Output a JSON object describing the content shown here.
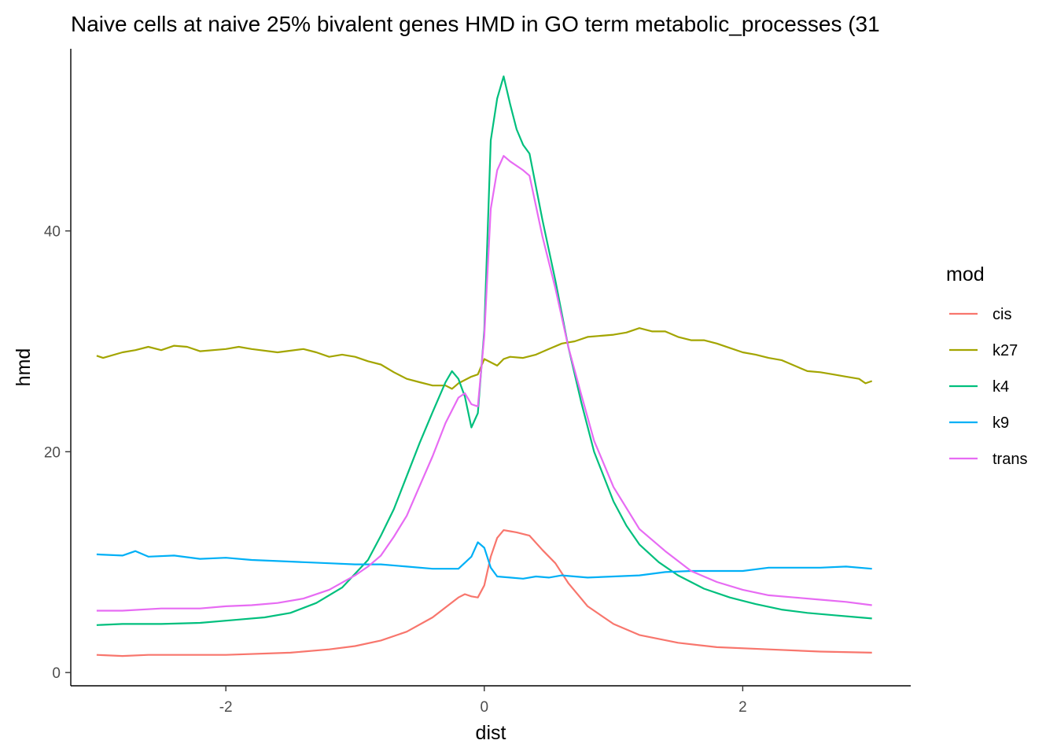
{
  "chart_data": {
    "type": "line",
    "title": "Naive cells at naive 25% bivalent genes HMD in GO term metabolic_processes (31",
    "xlabel": "dist",
    "ylabel": "hmd",
    "xlim": [
      -3.2,
      3.3
    ],
    "ylim": [
      -1.2,
      56.5
    ],
    "x_ticks": [
      -2,
      0,
      2
    ],
    "x_tick_labels": [
      "-2",
      "0",
      "2"
    ],
    "y_ticks": [
      0,
      20,
      40
    ],
    "y_tick_labels": [
      "0",
      "20",
      "40"
    ],
    "grid": false,
    "legend": {
      "title": "mod",
      "position": "right"
    },
    "series": [
      {
        "name": "cis",
        "color": "#F8766D",
        "points": [
          [
            -3,
            1.6
          ],
          [
            -2.8,
            1.5
          ],
          [
            -2.6,
            1.6
          ],
          [
            -2,
            1.6
          ],
          [
            -1.5,
            1.8
          ],
          [
            -1.2,
            2.1
          ],
          [
            -1,
            2.4
          ],
          [
            -0.8,
            2.9
          ],
          [
            -0.6,
            3.7
          ],
          [
            -0.4,
            5.0
          ],
          [
            -0.2,
            6.8
          ],
          [
            -0.15,
            7.1
          ],
          [
            -0.1,
            6.9
          ],
          [
            -0.05,
            6.8
          ],
          [
            0,
            7.9
          ],
          [
            0.05,
            10.5
          ],
          [
            0.1,
            12.2
          ],
          [
            0.15,
            12.9
          ],
          [
            0.2,
            12.8
          ],
          [
            0.25,
            12.7
          ],
          [
            0.35,
            12.4
          ],
          [
            0.45,
            11.1
          ],
          [
            0.55,
            9.9
          ],
          [
            0.65,
            8.1
          ],
          [
            0.8,
            6.0
          ],
          [
            1,
            4.4
          ],
          [
            1.2,
            3.4
          ],
          [
            1.5,
            2.7
          ],
          [
            1.8,
            2.3
          ],
          [
            2.2,
            2.1
          ],
          [
            2.6,
            1.9
          ],
          [
            3,
            1.8
          ]
        ]
      },
      {
        "name": "k27",
        "color": "#A3A500",
        "points": [
          [
            -3,
            28.7
          ],
          [
            -2.95,
            28.5
          ],
          [
            -2.8,
            29.0
          ],
          [
            -2.7,
            29.2
          ],
          [
            -2.6,
            29.5
          ],
          [
            -2.5,
            29.2
          ],
          [
            -2.4,
            29.6
          ],
          [
            -2.3,
            29.5
          ],
          [
            -2.2,
            29.1
          ],
          [
            -2.0,
            29.3
          ],
          [
            -1.9,
            29.5
          ],
          [
            -1.8,
            29.3
          ],
          [
            -1.6,
            29.0
          ],
          [
            -1.4,
            29.3
          ],
          [
            -1.3,
            29.0
          ],
          [
            -1.2,
            28.6
          ],
          [
            -1.1,
            28.8
          ],
          [
            -1.0,
            28.6
          ],
          [
            -0.9,
            28.2
          ],
          [
            -0.8,
            27.9
          ],
          [
            -0.7,
            27.2
          ],
          [
            -0.6,
            26.6
          ],
          [
            -0.5,
            26.3
          ],
          [
            -0.4,
            26.0
          ],
          [
            -0.3,
            26.0
          ],
          [
            -0.25,
            25.7
          ],
          [
            -0.2,
            26.2
          ],
          [
            -0.1,
            26.8
          ],
          [
            -0.05,
            27.0
          ],
          [
            0,
            28.4
          ],
          [
            0.1,
            27.8
          ],
          [
            0.15,
            28.4
          ],
          [
            0.2,
            28.6
          ],
          [
            0.3,
            28.5
          ],
          [
            0.4,
            28.8
          ],
          [
            0.5,
            29.3
          ],
          [
            0.6,
            29.8
          ],
          [
            0.7,
            30.0
          ],
          [
            0.8,
            30.4
          ],
          [
            0.9,
            30.5
          ],
          [
            1.0,
            30.6
          ],
          [
            1.1,
            30.8
          ],
          [
            1.2,
            31.2
          ],
          [
            1.3,
            30.9
          ],
          [
            1.4,
            30.9
          ],
          [
            1.5,
            30.4
          ],
          [
            1.6,
            30.1
          ],
          [
            1.7,
            30.1
          ],
          [
            1.8,
            29.8
          ],
          [
            1.9,
            29.4
          ],
          [
            2.0,
            29.0
          ],
          [
            2.1,
            28.8
          ],
          [
            2.2,
            28.5
          ],
          [
            2.3,
            28.3
          ],
          [
            2.4,
            27.8
          ],
          [
            2.5,
            27.3
          ],
          [
            2.6,
            27.2
          ],
          [
            2.7,
            27.0
          ],
          [
            2.8,
            26.8
          ],
          [
            2.9,
            26.6
          ],
          [
            2.95,
            26.2
          ],
          [
            3.0,
            26.4
          ]
        ]
      },
      {
        "name": "k4",
        "color": "#00BF7D",
        "points": [
          [
            -3,
            4.3
          ],
          [
            -2.8,
            4.4
          ],
          [
            -2.5,
            4.4
          ],
          [
            -2.2,
            4.5
          ],
          [
            -1.9,
            4.8
          ],
          [
            -1.7,
            5.0
          ],
          [
            -1.5,
            5.4
          ],
          [
            -1.3,
            6.3
          ],
          [
            -1.1,
            7.7
          ],
          [
            -0.9,
            10.2
          ],
          [
            -0.8,
            12.4
          ],
          [
            -0.7,
            14.8
          ],
          [
            -0.6,
            17.8
          ],
          [
            -0.5,
            20.8
          ],
          [
            -0.4,
            23.6
          ],
          [
            -0.3,
            26.3
          ],
          [
            -0.25,
            27.3
          ],
          [
            -0.2,
            26.6
          ],
          [
            -0.15,
            25.0
          ],
          [
            -0.1,
            22.2
          ],
          [
            -0.05,
            23.5
          ],
          [
            0,
            31.0
          ],
          [
            0.05,
            48.2
          ],
          [
            0.1,
            52.0
          ],
          [
            0.15,
            54.0
          ],
          [
            0.2,
            51.5
          ],
          [
            0.25,
            49.2
          ],
          [
            0.3,
            47.8
          ],
          [
            0.35,
            47.0
          ],
          [
            0.45,
            41.0
          ],
          [
            0.55,
            35.5
          ],
          [
            0.65,
            29.5
          ],
          [
            0.75,
            24.5
          ],
          [
            0.85,
            20.0
          ],
          [
            1.0,
            15.5
          ],
          [
            1.1,
            13.3
          ],
          [
            1.2,
            11.6
          ],
          [
            1.35,
            10.0
          ],
          [
            1.5,
            8.8
          ],
          [
            1.7,
            7.6
          ],
          [
            1.9,
            6.8
          ],
          [
            2.1,
            6.2
          ],
          [
            2.3,
            5.7
          ],
          [
            2.5,
            5.4
          ],
          [
            2.7,
            5.2
          ],
          [
            2.9,
            5.0
          ],
          [
            3.0,
            4.9
          ]
        ]
      },
      {
        "name": "k9",
        "color": "#00B0F6",
        "points": [
          [
            -3,
            10.7
          ],
          [
            -2.8,
            10.6
          ],
          [
            -2.7,
            11.0
          ],
          [
            -2.6,
            10.5
          ],
          [
            -2.4,
            10.6
          ],
          [
            -2.2,
            10.3
          ],
          [
            -2.0,
            10.4
          ],
          [
            -1.8,
            10.2
          ],
          [
            -1.6,
            10.1
          ],
          [
            -1.4,
            10.0
          ],
          [
            -1.2,
            9.9
          ],
          [
            -1.0,
            9.8
          ],
          [
            -0.8,
            9.8
          ],
          [
            -0.6,
            9.6
          ],
          [
            -0.4,
            9.4
          ],
          [
            -0.2,
            9.4
          ],
          [
            -0.1,
            10.5
          ],
          [
            -0.05,
            11.8
          ],
          [
            0,
            11.3
          ],
          [
            0.05,
            9.5
          ],
          [
            0.1,
            8.7
          ],
          [
            0.2,
            8.6
          ],
          [
            0.3,
            8.5
          ],
          [
            0.4,
            8.7
          ],
          [
            0.5,
            8.6
          ],
          [
            0.6,
            8.8
          ],
          [
            0.8,
            8.6
          ],
          [
            1.0,
            8.7
          ],
          [
            1.2,
            8.8
          ],
          [
            1.4,
            9.1
          ],
          [
            1.6,
            9.2
          ],
          [
            1.8,
            9.2
          ],
          [
            2.0,
            9.2
          ],
          [
            2.2,
            9.5
          ],
          [
            2.4,
            9.5
          ],
          [
            2.6,
            9.5
          ],
          [
            2.8,
            9.6
          ],
          [
            3.0,
            9.4
          ]
        ]
      },
      {
        "name": "trans",
        "color": "#E76BF3",
        "points": [
          [
            -3,
            5.6
          ],
          [
            -2.8,
            5.6
          ],
          [
            -2.5,
            5.8
          ],
          [
            -2.2,
            5.8
          ],
          [
            -2.0,
            6.0
          ],
          [
            -1.8,
            6.1
          ],
          [
            -1.6,
            6.3
          ],
          [
            -1.4,
            6.7
          ],
          [
            -1.2,
            7.5
          ],
          [
            -1.0,
            8.8
          ],
          [
            -0.9,
            9.6
          ],
          [
            -0.8,
            10.6
          ],
          [
            -0.7,
            12.3
          ],
          [
            -0.6,
            14.2
          ],
          [
            -0.5,
            16.9
          ],
          [
            -0.4,
            19.6
          ],
          [
            -0.3,
            22.6
          ],
          [
            -0.2,
            24.9
          ],
          [
            -0.15,
            25.3
          ],
          [
            -0.1,
            24.3
          ],
          [
            -0.05,
            24.1
          ],
          [
            0,
            30.5
          ],
          [
            0.05,
            42.0
          ],
          [
            0.1,
            45.5
          ],
          [
            0.15,
            46.8
          ],
          [
            0.2,
            46.3
          ],
          [
            0.3,
            45.5
          ],
          [
            0.35,
            45.0
          ],
          [
            0.45,
            39.5
          ],
          [
            0.55,
            34.8
          ],
          [
            0.65,
            29.5
          ],
          [
            0.75,
            25.2
          ],
          [
            0.85,
            21.0
          ],
          [
            1.0,
            16.8
          ],
          [
            1.2,
            13.0
          ],
          [
            1.4,
            11.0
          ],
          [
            1.6,
            9.2
          ],
          [
            1.8,
            8.2
          ],
          [
            2.0,
            7.5
          ],
          [
            2.2,
            7.0
          ],
          [
            2.4,
            6.8
          ],
          [
            2.6,
            6.6
          ],
          [
            2.8,
            6.4
          ],
          [
            3.0,
            6.1
          ]
        ]
      }
    ]
  }
}
